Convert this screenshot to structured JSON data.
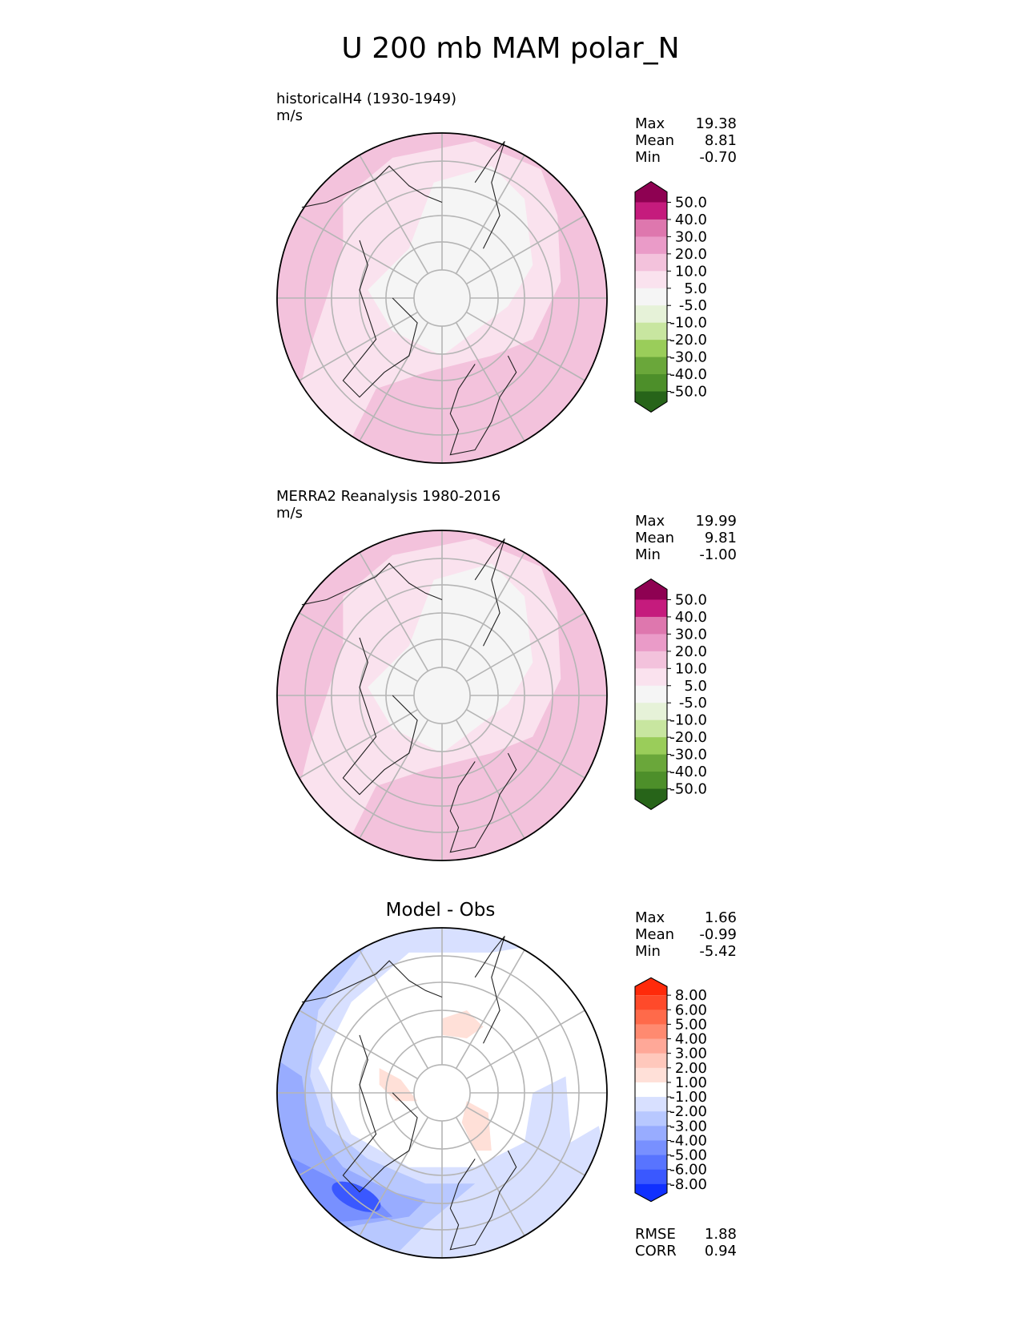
{
  "title": "U 200 mb MAM polar_N",
  "panels": [
    {
      "id": "model",
      "label": "historicalH4 (1930-1949)",
      "units": "m/s",
      "stats": [
        {
          "name": "Max",
          "value": "19.38"
        },
        {
          "name": "Mean",
          "value": "8.81"
        },
        {
          "name": "Min",
          "value": "-0.70"
        }
      ],
      "colorbar": {
        "labels": [
          "50.0",
          "40.0",
          "30.0",
          "20.0",
          "10.0",
          "5.0",
          "-5.0",
          "-10.0",
          "-20.0",
          "-30.0",
          "-40.0",
          "-50.0"
        ],
        "colors": [
          "#8e0152",
          "#c51b7d",
          "#de77ae",
          "#ea9bc8",
          "#f3c2dc",
          "#fae2ee",
          "#f5f5f5",
          "#e6f2d8",
          "#c8e6a0",
          "#9acd5a",
          "#6aa73a",
          "#4d8f2a",
          "#276419"
        ]
      }
    },
    {
      "id": "obs",
      "label": "MERRA2 Reanalysis 1980-2016",
      "units": "m/s",
      "stats": [
        {
          "name": "Max",
          "value": "19.99"
        },
        {
          "name": "Mean",
          "value": "9.81"
        },
        {
          "name": "Min",
          "value": "-1.00"
        }
      ],
      "colorbar": {
        "labels": [
          "50.0",
          "40.0",
          "30.0",
          "20.0",
          "10.0",
          "5.0",
          "-5.0",
          "-10.0",
          "-20.0",
          "-30.0",
          "-40.0",
          "-50.0"
        ],
        "colors": [
          "#8e0152",
          "#c51b7d",
          "#de77ae",
          "#ea9bc8",
          "#f3c2dc",
          "#fae2ee",
          "#f5f5f5",
          "#e6f2d8",
          "#c8e6a0",
          "#9acd5a",
          "#6aa73a",
          "#4d8f2a",
          "#276419"
        ]
      }
    },
    {
      "id": "diff",
      "label": "Model - Obs",
      "stats": [
        {
          "name": "Max",
          "value": "1.66"
        },
        {
          "name": "Mean",
          "value": "-0.99"
        },
        {
          "name": "Min",
          "value": "-5.42"
        }
      ],
      "extra_stats": [
        {
          "name": "RMSE",
          "value": "1.88"
        },
        {
          "name": "CORR",
          "value": "0.94"
        }
      ],
      "colorbar": {
        "labels": [
          "8.00",
          "6.00",
          "5.00",
          "4.00",
          "3.00",
          "2.00",
          "1.00",
          "-1.00",
          "-2.00",
          "-3.00",
          "-4.00",
          "-5.00",
          "-6.00",
          "-8.00"
        ],
        "colors": [
          "#ff2a0a",
          "#ff4a2a",
          "#ff6a4a",
          "#ff8a70",
          "#ffa898",
          "#ffc8bc",
          "#ffe0d8",
          "#ffffff",
          "#d8e0ff",
          "#b8c8ff",
          "#98acff",
          "#7890ff",
          "#5874ff",
          "#3a58ff",
          "#1030ff"
        ]
      }
    }
  ]
}
